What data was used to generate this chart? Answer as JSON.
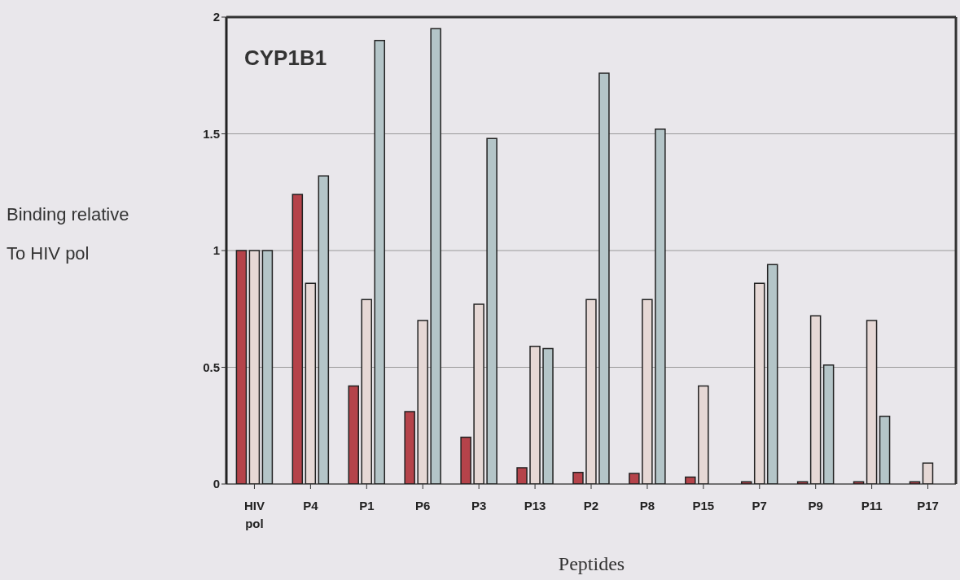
{
  "chart_data": {
    "type": "bar",
    "title": "CYP1B1",
    "xlabel": "Peptides",
    "ylabel": "Binding relative\nTo HIV pol",
    "categories": [
      "HIV pol",
      "P4",
      "P1",
      "P6",
      "P3",
      "P13",
      "P2",
      "P8",
      "P15",
      "P7",
      "P9",
      "P11",
      "P17"
    ],
    "series": [
      {
        "color": "#b5434a",
        "values": [
          1,
          1.24,
          0.42,
          0.31,
          0.2,
          0.07,
          0.05,
          0.045,
          0.03,
          0.01,
          0.01,
          0.01,
          0.01
        ]
      },
      {
        "color": "#e6d8d5",
        "values": [
          1,
          0.86,
          0.79,
          0.7,
          0.77,
          0.59,
          0.79,
          0.79,
          0.42,
          0.86,
          0.72,
          0.7,
          0.09
        ]
      },
      {
        "color": "#b4c5c8",
        "values": [
          1,
          1.32,
          1.9,
          1.95,
          1.48,
          0.58,
          1.76,
          1.52,
          0,
          0.94,
          0.51,
          0.29,
          0
        ]
      }
    ],
    "ylim": [
      0,
      2
    ],
    "yticks": [
      0,
      0.5,
      1,
      1.5,
      2
    ],
    "grid": "y",
    "legend": false
  }
}
